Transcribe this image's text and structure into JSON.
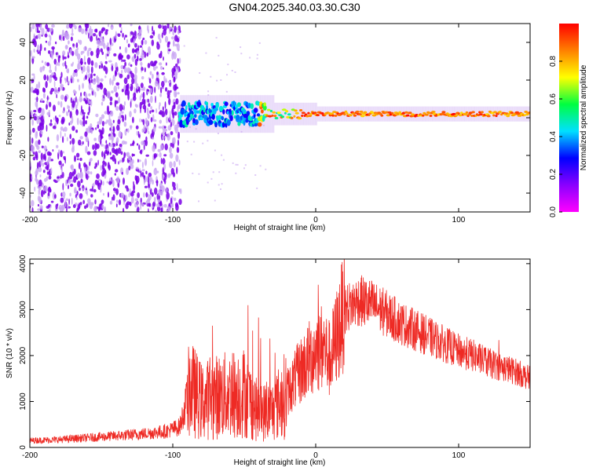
{
  "title": "GN04.2025.340.03.30.C30",
  "colors": {
    "snr_line": "#ee2a24",
    "spec_scatter": "#7a00e6",
    "spec_scatter_light": "#c9a6f2",
    "colormap": [
      "#ff00ff",
      "#8a00ff",
      "#0000ff",
      "#00e0ff",
      "#00ff40",
      "#ffff00",
      "#ff8000",
      "#ff0000"
    ]
  },
  "chart_data": [
    {
      "type": "heatmap",
      "xlabel": "Height of straight line (km)",
      "ylabel": "Frequency (Hz)",
      "xlim": [
        -200,
        150
      ],
      "ylim": [
        -50,
        50
      ],
      "x_ticks": [
        -200,
        -100,
        0,
        100
      ],
      "y_ticks": [
        -40,
        -20,
        0,
        20,
        40
      ],
      "colorbar": {
        "label": "Normalized spectral amplitude",
        "range": [
          0,
          1
        ],
        "ticks": [
          "0.0",
          "0.2",
          "0.4",
          "0.6",
          "0.8"
        ]
      },
      "features": {
        "broadband_noise_region_x": [
          -200,
          -95
        ],
        "signal_frequency_hz": 2,
        "signal_start_x": -95
      }
    },
    {
      "type": "line",
      "xlabel": "Height of straight line (km)",
      "ylabel": "SNR (10 * v/v)",
      "xlim": [
        -200,
        150
      ],
      "ylim": [
        0,
        4100
      ],
      "x_ticks": [
        -200,
        -100,
        0,
        100
      ],
      "y_ticks": [
        0,
        1000,
        2000,
        3000,
        4000
      ],
      "series": [
        {
          "x": [
            -200,
            -180,
            -160,
            -140,
            -120,
            -105,
            -95,
            -88,
            -85,
            -80,
            -70,
            -60,
            -50,
            -40,
            -30,
            -20,
            -10,
            0,
            5,
            10,
            20,
            30,
            40,
            50,
            60,
            70,
            80,
            90,
            100,
            110,
            120,
            130,
            140,
            150
          ],
          "y": [
            150,
            170,
            210,
            250,
            300,
            350,
            450,
            1300,
            1200,
            1000,
            1100,
            1150,
            1200,
            750,
            800,
            1200,
            1700,
            2100,
            2200,
            1900,
            3000,
            3200,
            3100,
            2900,
            2700,
            2550,
            2400,
            2250,
            2100,
            2000,
            1850,
            1750,
            1650,
            1500
          ]
        }
      ]
    }
  ]
}
